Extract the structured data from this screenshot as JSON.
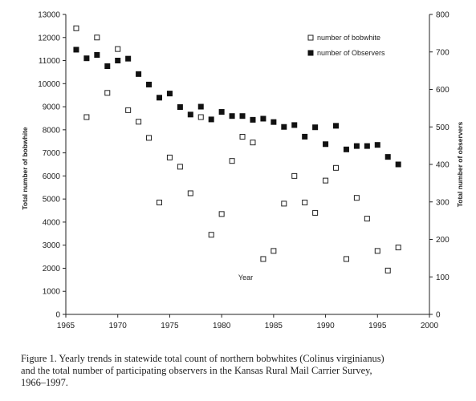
{
  "chart_data": {
    "type": "scatter",
    "xlabel": "Year",
    "ylabel_left": "Total number of bobwhite",
    "ylabel_right": "Total number of observers",
    "xlim": [
      1965,
      2000
    ],
    "xticks": [
      1965,
      1970,
      1975,
      1980,
      1985,
      1990,
      1995,
      2000
    ],
    "ylim_left": [
      0,
      13000
    ],
    "yticks_left": [
      0,
      1000,
      2000,
      3000,
      4000,
      5000,
      6000,
      7000,
      8000,
      9000,
      10000,
      11000,
      12000,
      13000
    ],
    "ylim_right": [
      0,
      800
    ],
    "yticks_right": [
      0,
      100,
      200,
      300,
      400,
      500,
      600,
      700,
      800
    ],
    "legend_position": "top-right",
    "series": [
      {
        "name": "number of bobwhite",
        "axis": "left",
        "marker": "open-square",
        "x": [
          1966,
          1967,
          1968,
          1969,
          1970,
          1971,
          1972,
          1973,
          1974,
          1975,
          1976,
          1977,
          1978,
          1979,
          1980,
          1981,
          1982,
          1983,
          1984,
          1985,
          1986,
          1987,
          1988,
          1989,
          1990,
          1991,
          1992,
          1993,
          1994,
          1995,
          1996,
          1997
        ],
        "y": [
          12400,
          8550,
          12000,
          9600,
          11500,
          8850,
          8350,
          7650,
          4850,
          6800,
          6400,
          5250,
          8550,
          3450,
          4350,
          6650,
          7700,
          7450,
          2400,
          2750,
          4800,
          6000,
          4850,
          4400,
          5800,
          6350,
          2400,
          5050,
          4150,
          2750,
          1900,
          2900
        ]
      },
      {
        "name": "number of Observers",
        "axis": "right",
        "marker": "filled-square",
        "x": [
          1966,
          1967,
          1968,
          1969,
          1970,
          1971,
          1972,
          1973,
          1974,
          1975,
          1976,
          1977,
          1978,
          1979,
          1980,
          1981,
          1982,
          1983,
          1984,
          1985,
          1986,
          1987,
          1988,
          1989,
          1990,
          1991,
          1992,
          1993,
          1994,
          1995,
          1996,
          1997
        ],
        "y": [
          706,
          683,
          692,
          662,
          677,
          682,
          641,
          613,
          578,
          589,
          553,
          533,
          554,
          520,
          540,
          529,
          529,
          519,
          522,
          513,
          500,
          505,
          474,
          499,
          454,
          503,
          440,
          449,
          449,
          452,
          420,
          400
        ]
      }
    ]
  },
  "caption": {
    "line1": "Figure 1.  Yearly trends in statewide total count of northern bobwhites (Colinus virginianus)",
    "line2": "and the total number of participating observers in the Kansas Rural Mail Carrier Survey,",
    "line3": "1966–1997."
  }
}
